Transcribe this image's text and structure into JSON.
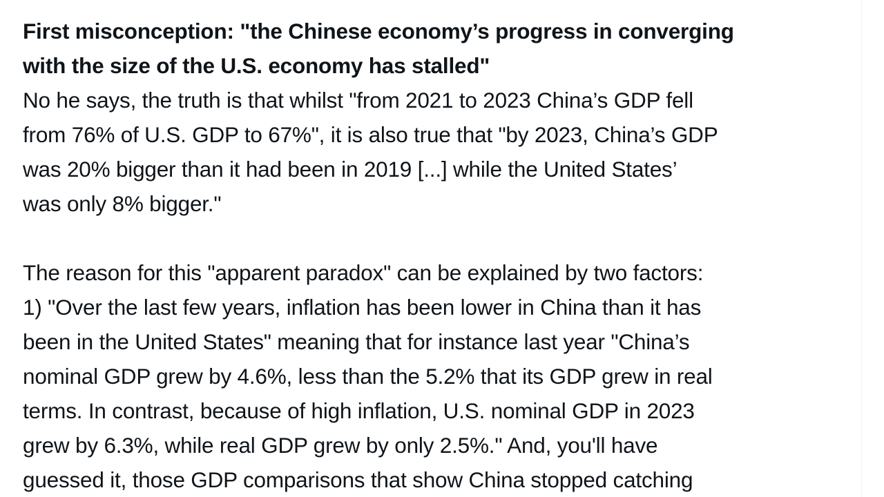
{
  "post": {
    "heading": [
      "First misconception: \"the Chinese economy’s progress in converging",
      "with the size of the U.S. economy has stalled\""
    ],
    "paragraphs": [
      [
        "No he says, the truth is that whilst \"from 2021 to 2023 China’s GDP fell",
        "from 76% of U.S. GDP to 67%\", it is also true that \"by 2023, China’s GDP",
        "was 20% bigger than it had been in 2019 [...] while the United States’",
        "was only 8% bigger.\""
      ],
      [
        "The reason for this \"apparent paradox\" can be explained by two factors:",
        "1) \"Over the last few years, inflation has been lower in China than it has",
        "been in the United States\" meaning that for instance last year \"China’s",
        "nominal GDP grew by 4.6%, less than the 5.2% that its GDP grew in real",
        "terms. In contrast, because of high inflation, U.S. nominal GDP in 2023",
        "grew by 6.3%, while real GDP grew by only 2.5%.\" And, you'll have",
        "guessed it, those GDP comparisons that show China stopped catching"
      ]
    ]
  }
}
